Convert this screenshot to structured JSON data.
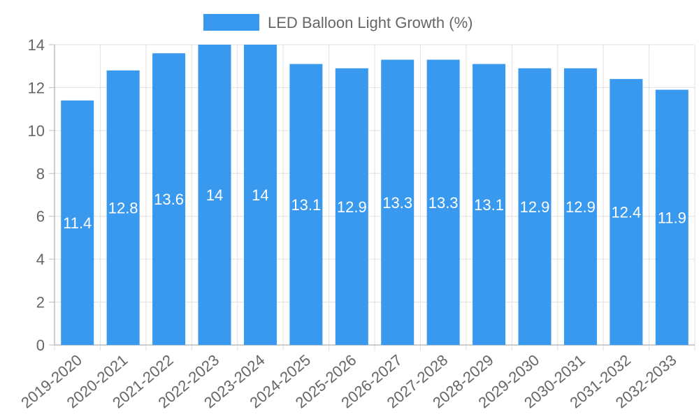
{
  "chart_data": {
    "type": "bar",
    "categories": [
      "2019-2020",
      "2020-2021",
      "2021-2022",
      "2022-2023",
      "2023-2024",
      "2024-2025",
      "2025-2026",
      "2026-2027",
      "2027-2028",
      "2028-2029",
      "2029-2030",
      "2030-2031",
      "2031-2032",
      "2032-2033"
    ],
    "series": [
      {
        "name": "LED Balloon Light Growth (%)",
        "values": [
          11.4,
          12.8,
          13.6,
          14,
          14,
          13.1,
          12.9,
          13.3,
          13.3,
          13.1,
          12.9,
          12.9,
          12.4,
          11.9
        ],
        "color": "#3999EE"
      }
    ],
    "ylim": [
      0,
      14
    ],
    "yticks": [
      0,
      2,
      4,
      6,
      8,
      10,
      12,
      14
    ],
    "grid": true,
    "legend": "top-center",
    "data_labels": true
  }
}
